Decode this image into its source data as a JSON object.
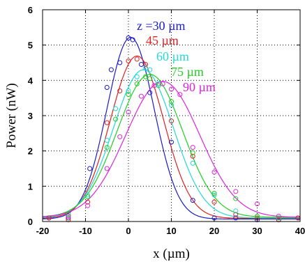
{
  "chart_data": {
    "type": "scatter",
    "xlabel": "x (µm)",
    "ylabel": "Power (nW)",
    "xlim": [
      -20,
      40
    ],
    "ylim": [
      0,
      6
    ],
    "xticks": [
      "-20",
      "-10",
      "0",
      "10",
      "20",
      "30",
      "40"
    ],
    "yticks": [
      "0",
      "1",
      "2",
      "3",
      "4",
      "5",
      "6"
    ],
    "grid": "dotted",
    "series": [
      {
        "name": "z =30 µm",
        "color": "#1a1acc",
        "points": [
          [
            -18.5,
            0.1
          ],
          [
            -14,
            0.1
          ],
          [
            -9,
            1.5
          ],
          [
            -5,
            3.8
          ],
          [
            -4,
            4.3
          ],
          [
            -2,
            4.5
          ],
          [
            0,
            5.2
          ],
          [
            1,
            5.15
          ],
          [
            3,
            4.45
          ],
          [
            5,
            3.65
          ],
          [
            10,
            2.25
          ],
          [
            15,
            0.6
          ],
          [
            20,
            0.1
          ],
          [
            25,
            0.1
          ],
          [
            30,
            0.05
          ],
          [
            35,
            0.05
          ],
          [
            39.5,
            0.1
          ]
        ],
        "fit": {
          "amplitude": 5.15,
          "center": 0.5,
          "sigma": 5.5,
          "baseline": 0.07
        }
      },
      {
        "name": "45 µm",
        "color": "#e02020",
        "points": [
          [
            -18.5,
            0.1
          ],
          [
            -14,
            0.05
          ],
          [
            -9.5,
            0.55
          ],
          [
            -5,
            2.8
          ],
          [
            -2,
            3.7
          ],
          [
            0,
            4.55
          ],
          [
            2,
            4.6
          ],
          [
            4,
            4.45
          ],
          [
            7,
            3.9
          ],
          [
            10,
            2.85
          ],
          [
            15,
            1.85
          ],
          [
            20,
            0.55
          ],
          [
            25,
            0.2
          ],
          [
            30,
            0.1
          ],
          [
            35,
            0.05
          ],
          [
            39.5,
            0.1
          ]
        ],
        "fit": {
          "amplitude": 4.6,
          "center": 2.0,
          "sigma": 6.2,
          "baseline": 0.09
        }
      },
      {
        "name": "60 µm",
        "color": "#22d8d8",
        "points": [
          [
            -14,
            0.15
          ],
          [
            -9.5,
            0.75
          ],
          [
            -5,
            2.3
          ],
          [
            -3,
            3.2
          ],
          [
            0,
            3.7
          ],
          [
            2,
            4.1
          ],
          [
            4,
            4.35
          ],
          [
            5,
            4.3
          ],
          [
            7,
            3.9
          ],
          [
            10,
            3.3
          ],
          [
            15,
            1.65
          ],
          [
            20,
            0.75
          ],
          [
            25,
            0.3
          ],
          [
            30,
            0.15
          ],
          [
            35,
            0.1
          ]
        ],
        "fit": {
          "amplitude": 4.2,
          "center": 3.5,
          "sigma": 7.0,
          "baseline": 0.1
        }
      },
      {
        "name": "75 µm",
        "color": "#22cc22",
        "points": [
          [
            -14,
            0.2
          ],
          [
            -9.5,
            0.7
          ],
          [
            -5,
            2.1
          ],
          [
            -3,
            2.9
          ],
          [
            0,
            3.6
          ],
          [
            2,
            3.9
          ],
          [
            4,
            4.1
          ],
          [
            5,
            4.05
          ],
          [
            7,
            3.85
          ],
          [
            10,
            3.4
          ],
          [
            15,
            1.95
          ],
          [
            20,
            0.8
          ],
          [
            25,
            0.65
          ],
          [
            30,
            0.15
          ],
          [
            35,
            0.1
          ]
        ],
        "fit": {
          "amplitude": 4.05,
          "center": 5.0,
          "sigma": 7.6,
          "baseline": 0.12
        }
      },
      {
        "name": "90 µm",
        "color": "#dd22dd",
        "points": [
          [
            -14,
            0.15
          ],
          [
            -9.5,
            0.45
          ],
          [
            -5,
            1.5
          ],
          [
            -2,
            2.4
          ],
          [
            0,
            3.1
          ],
          [
            3,
            3.55
          ],
          [
            6,
            3.85
          ],
          [
            8,
            3.9
          ],
          [
            10,
            3.75
          ],
          [
            12,
            3.6
          ],
          [
            15,
            2.1
          ],
          [
            20,
            1.4
          ],
          [
            25,
            0.85
          ],
          [
            30,
            0.5
          ],
          [
            35,
            0.15
          ]
        ],
        "fit": {
          "amplitude": 3.85,
          "center": 8.0,
          "sigma": 8.6,
          "baseline": 0.12
        }
      }
    ]
  }
}
